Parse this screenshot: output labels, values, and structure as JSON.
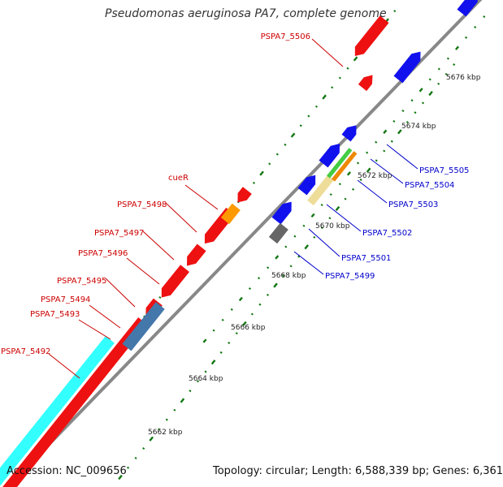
{
  "title": "Pseudomonas aeruginosa PA7, complete genome",
  "footer": {
    "accession": "Accession: NC_009656",
    "summary": "Topology: circular; Length: 6,588,339 bp; Genes: 6,361"
  },
  "colors": {
    "reverse_cds": "#ee1111",
    "forward_cds": "#1111ee",
    "rna": "#33ffff",
    "backbone": "#888888",
    "label_reverse": "#cc0000",
    "label_forward": "#0000cc",
    "tick": "#117711"
  },
  "scale_labels": [
    {
      "text": "5662 kbp",
      "kbp": 5662
    },
    {
      "text": "5664 kbp",
      "kbp": 5664
    },
    {
      "text": "5666 kbp",
      "kbp": 5666
    },
    {
      "text": "5668 kbp",
      "kbp": 5668
    },
    {
      "text": "5670 kbp",
      "kbp": 5670
    },
    {
      "text": "5672 kbp",
      "kbp": 5672
    },
    {
      "text": "5674 kbp",
      "kbp": 5674
    },
    {
      "text": "5676 kbp",
      "kbp": 5676
    }
  ],
  "gene_labels": {
    "reverse": [
      "PSPA7_5506",
      "cueR",
      "PSPA7_5498",
      "PSPA7_5497",
      "PSPA7_5496",
      "PSPA7_5495",
      "PSPA7_5494",
      "PSPA7_5493",
      "PSPA7_5492"
    ],
    "forward": [
      "PSPA7_5505",
      "PSPA7_5504",
      "PSPA7_5503",
      "PSPA7_5502",
      "PSPA7_5501",
      "PSPA7_5499"
    ]
  }
}
